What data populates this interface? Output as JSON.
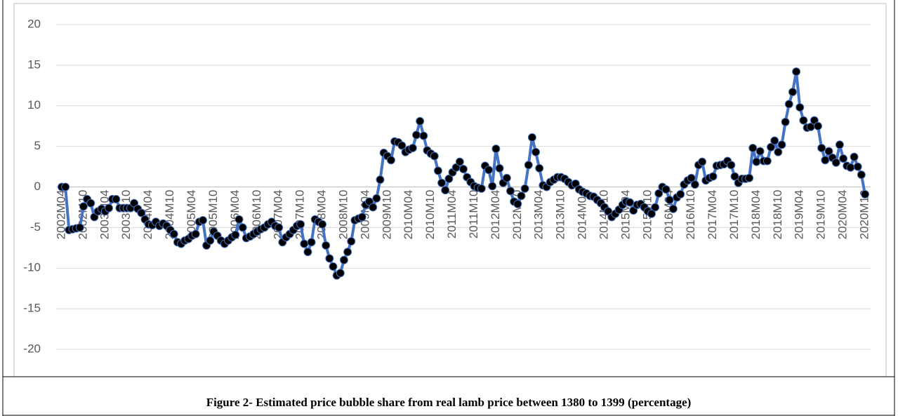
{
  "chart_data": {
    "type": "line",
    "caption": "Figure 2- Estimated price bubble share from real lamb price between 1380 to 1399 (percentage)",
    "categories": [
      "2002M04",
      null,
      null,
      null,
      null,
      null,
      "2002M10",
      null,
      null,
      null,
      null,
      null,
      "2003M04",
      null,
      null,
      null,
      null,
      null,
      "2003M10",
      null,
      null,
      null,
      null,
      null,
      "2004M04",
      null,
      null,
      null,
      null,
      null,
      "2004M10",
      null,
      null,
      null,
      null,
      null,
      "2005M04",
      null,
      null,
      null,
      null,
      null,
      "2005M10",
      null,
      null,
      null,
      null,
      null,
      "2006M04",
      null,
      null,
      null,
      null,
      null,
      "2006M10",
      null,
      null,
      null,
      null,
      null,
      "2007M04",
      null,
      null,
      null,
      null,
      null,
      "2007M10",
      null,
      null,
      null,
      null,
      null,
      "2008M04",
      null,
      null,
      null,
      null,
      null,
      "2008M10",
      null,
      null,
      null,
      null,
      null,
      "2009M04",
      null,
      null,
      null,
      null,
      null,
      "2009M10",
      null,
      null,
      null,
      null,
      null,
      "2010M04",
      null,
      null,
      null,
      null,
      null,
      "2010M10",
      null,
      null,
      null,
      null,
      null,
      "2011M04",
      null,
      null,
      null,
      null,
      null,
      "2011M10",
      null,
      null,
      null,
      null,
      null,
      "2012M04",
      null,
      null,
      null,
      null,
      null,
      "2012M10",
      null,
      null,
      null,
      null,
      null,
      "2013M04",
      null,
      null,
      null,
      null,
      null,
      "2013M10",
      null,
      null,
      null,
      null,
      null,
      "2014M04",
      null,
      null,
      null,
      null,
      null,
      "2014M10",
      null,
      null,
      null,
      null,
      null,
      "2015M04",
      null,
      null,
      null,
      null,
      null,
      "2015M10",
      null,
      null,
      null,
      null,
      null,
      "2016M04",
      null,
      null,
      null,
      null,
      null,
      "2016M10",
      null,
      null,
      null,
      null,
      null,
      "2017M04",
      null,
      null,
      null,
      null,
      null,
      "2017M10",
      null,
      null,
      null,
      null,
      null,
      "2018M04",
      null,
      null,
      null,
      null,
      null,
      "2018M10",
      null,
      null,
      null,
      null,
      null,
      "2019M04",
      null,
      null,
      null,
      null,
      null,
      "2019M10",
      null,
      null,
      null,
      null,
      null,
      "2020M04",
      null,
      null,
      null,
      null,
      null,
      "2020M10"
    ],
    "values": [
      0,
      0,
      -5.3,
      -5.2,
      -5.1,
      -5,
      -2.4,
      -1.5,
      -2,
      -3.7,
      -3,
      -2.7,
      -3,
      -2.6,
      -1.5,
      -1.5,
      -2.6,
      -2.6,
      -2.6,
      -2.6,
      -2,
      -2.7,
      -3.2,
      -4,
      -4.6,
      -4.7,
      -4.3,
      -4.8,
      -4.5,
      -4.8,
      -5.3,
      -5.8,
      -6.8,
      -7,
      -6.6,
      -6.4,
      -6,
      -5.8,
      -4.3,
      -4.1,
      -7.2,
      -6.6,
      -5.5,
      -6,
      -6.6,
      -7,
      -6.6,
      -6.2,
      -5.9,
      -4,
      -5,
      -6.3,
      -6.1,
      -5.8,
      -5.5,
      -5.2,
      -5,
      -4.6,
      -4.3,
      -4.8,
      -5,
      -6.8,
      -6.2,
      -5.8,
      -5.3,
      -4.8,
      -4.6,
      -7,
      -8,
      -6.8,
      -4,
      -4.3,
      -4.6,
      -7.2,
      -8.8,
      -9.8,
      -10.9,
      -10.6,
      -9,
      -8,
      -6.7,
      -4.1,
      -3.9,
      -3.7,
      -2.2,
      -1.8,
      -2.5,
      -1.4,
      0.9,
      4.2,
      3.8,
      3.3,
      5.6,
      5.5,
      5.1,
      4.3,
      4.6,
      4.8,
      6.4,
      8.1,
      6.3,
      4.5,
      4.1,
      3.8,
      2,
      0.5,
      -0.4,
      1,
      1.8,
      2.4,
      3.1,
      2.2,
      1.2,
      0.6,
      0.1,
      -0.1,
      -0.2,
      2.6,
      2.1,
      0.1,
      4.7,
      2.3,
      0.5,
      1.1,
      -0.5,
      -1.8,
      -2.1,
      -1.1,
      -0.2,
      2.7,
      6.1,
      4.3,
      2.3,
      0.2,
      0,
      0.6,
      0.9,
      1.2,
      1.2,
      1,
      0.6,
      0.2,
      0.4,
      -0.3,
      -0.6,
      -0.8,
      -1.1,
      -1.2,
      -1.6,
      -2,
      -2.5,
      -3,
      -3.7,
      -3.3,
      -2.8,
      -2.2,
      -1.8,
      -1.9,
      -2.9,
      -2.2,
      -2.1,
      -2.5,
      -3,
      -3.3,
      -2.5,
      -0.8,
      0,
      -0.3,
      -1.6,
      -2.7,
      -1.3,
      -0.9,
      0.3,
      0.8,
      1.1,
      0.3,
      2.7,
      3.1,
      0.8,
      1.1,
      1.3,
      2.6,
      2.7,
      2.8,
      3.2,
      2.7,
      1.3,
      0.5,
      1,
      1,
      1.1,
      4.8,
      3.1,
      4.4,
      3.2,
      3.2,
      4.9,
      5.7,
      4.3,
      5.2,
      8,
      10.2,
      11.7,
      14.2,
      9.8,
      8.2,
      7.3,
      7.4,
      8.2,
      7.5,
      4.8,
      3.3,
      4.4,
      3.6,
      3,
      5.2,
      3.5,
      2.6,
      2.4,
      3.7,
      2.5,
      1.5,
      -0.9
    ],
    "color": "#4472c4",
    "marker_color": "#000000",
    "ylim": [
      -20,
      20
    ],
    "yticks": [
      -20,
      -15,
      -10,
      -5,
      0,
      5,
      10,
      15,
      20
    ],
    "grid": true
  }
}
